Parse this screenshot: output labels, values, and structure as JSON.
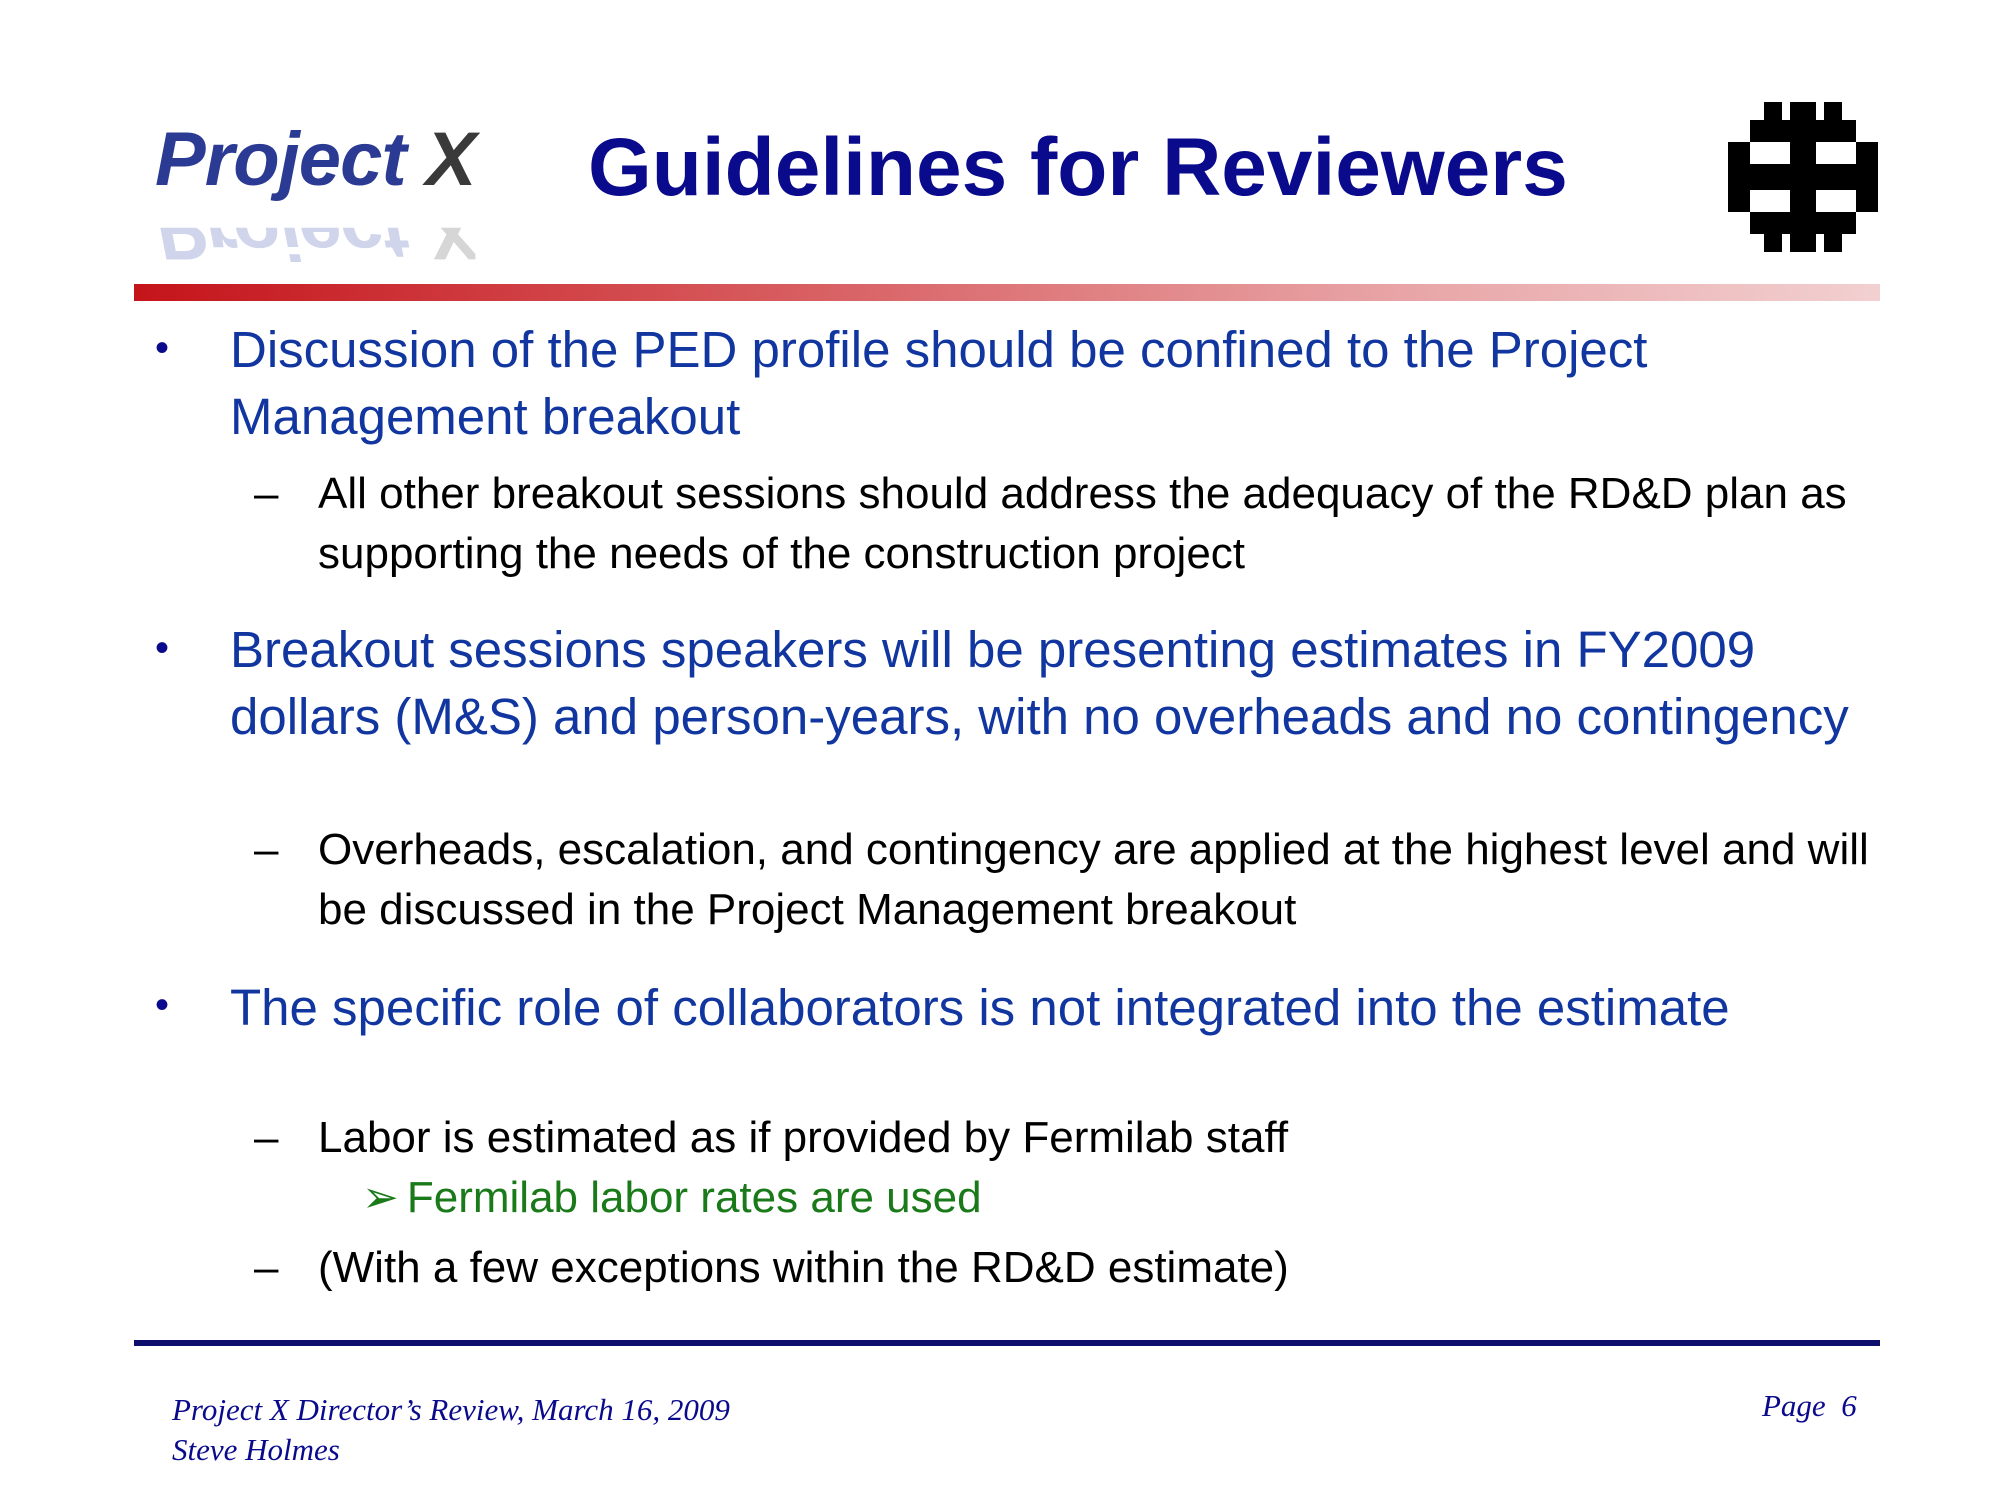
{
  "header": {
    "logo_main": "Project ",
    "logo_x": "X",
    "title": "Guidelines for Reviewers"
  },
  "bullets": [
    {
      "text": "Discussion of the PED profile should be confined to the Project Management breakout",
      "subs": [
        {
          "text": "All other breakout sessions should address the adequacy of the RD&D plan as supporting the needs of the construction project"
        }
      ]
    },
    {
      "text": "Breakout sessions speakers will be presenting estimates in FY2009 dollars (M&S) and person-years, with no overheads and no contingency",
      "subs": [
        {
          "text": "Overheads, escalation, and contingency are applied at the highest level and will be discussed in the Project Management breakout"
        }
      ]
    },
    {
      "text": "The specific role of collaborators is not integrated into the estimate",
      "subs": [
        {
          "text": "Labor is estimated as if provided by Fermilab staff",
          "subs": [
            {
              "text": "Fermilab labor rates are used"
            }
          ]
        },
        {
          "text": "(With a few exceptions within the RD&D estimate)"
        }
      ]
    }
  ],
  "symbols": {
    "bullet": "•",
    "dash": "–",
    "arrow": "➢"
  },
  "footer": {
    "line1": "Project X Director’s Review, March 16, 2009",
    "line2": "Steve Holmes",
    "page": "Page  6"
  },
  "colors": {
    "title": "#0a0a8c",
    "level1": "#1236a0",
    "level2": "#000000",
    "level3": "#1a7a1a",
    "top_rule_start": "#c4141a",
    "bottom_rule": "#0d0d6e"
  }
}
